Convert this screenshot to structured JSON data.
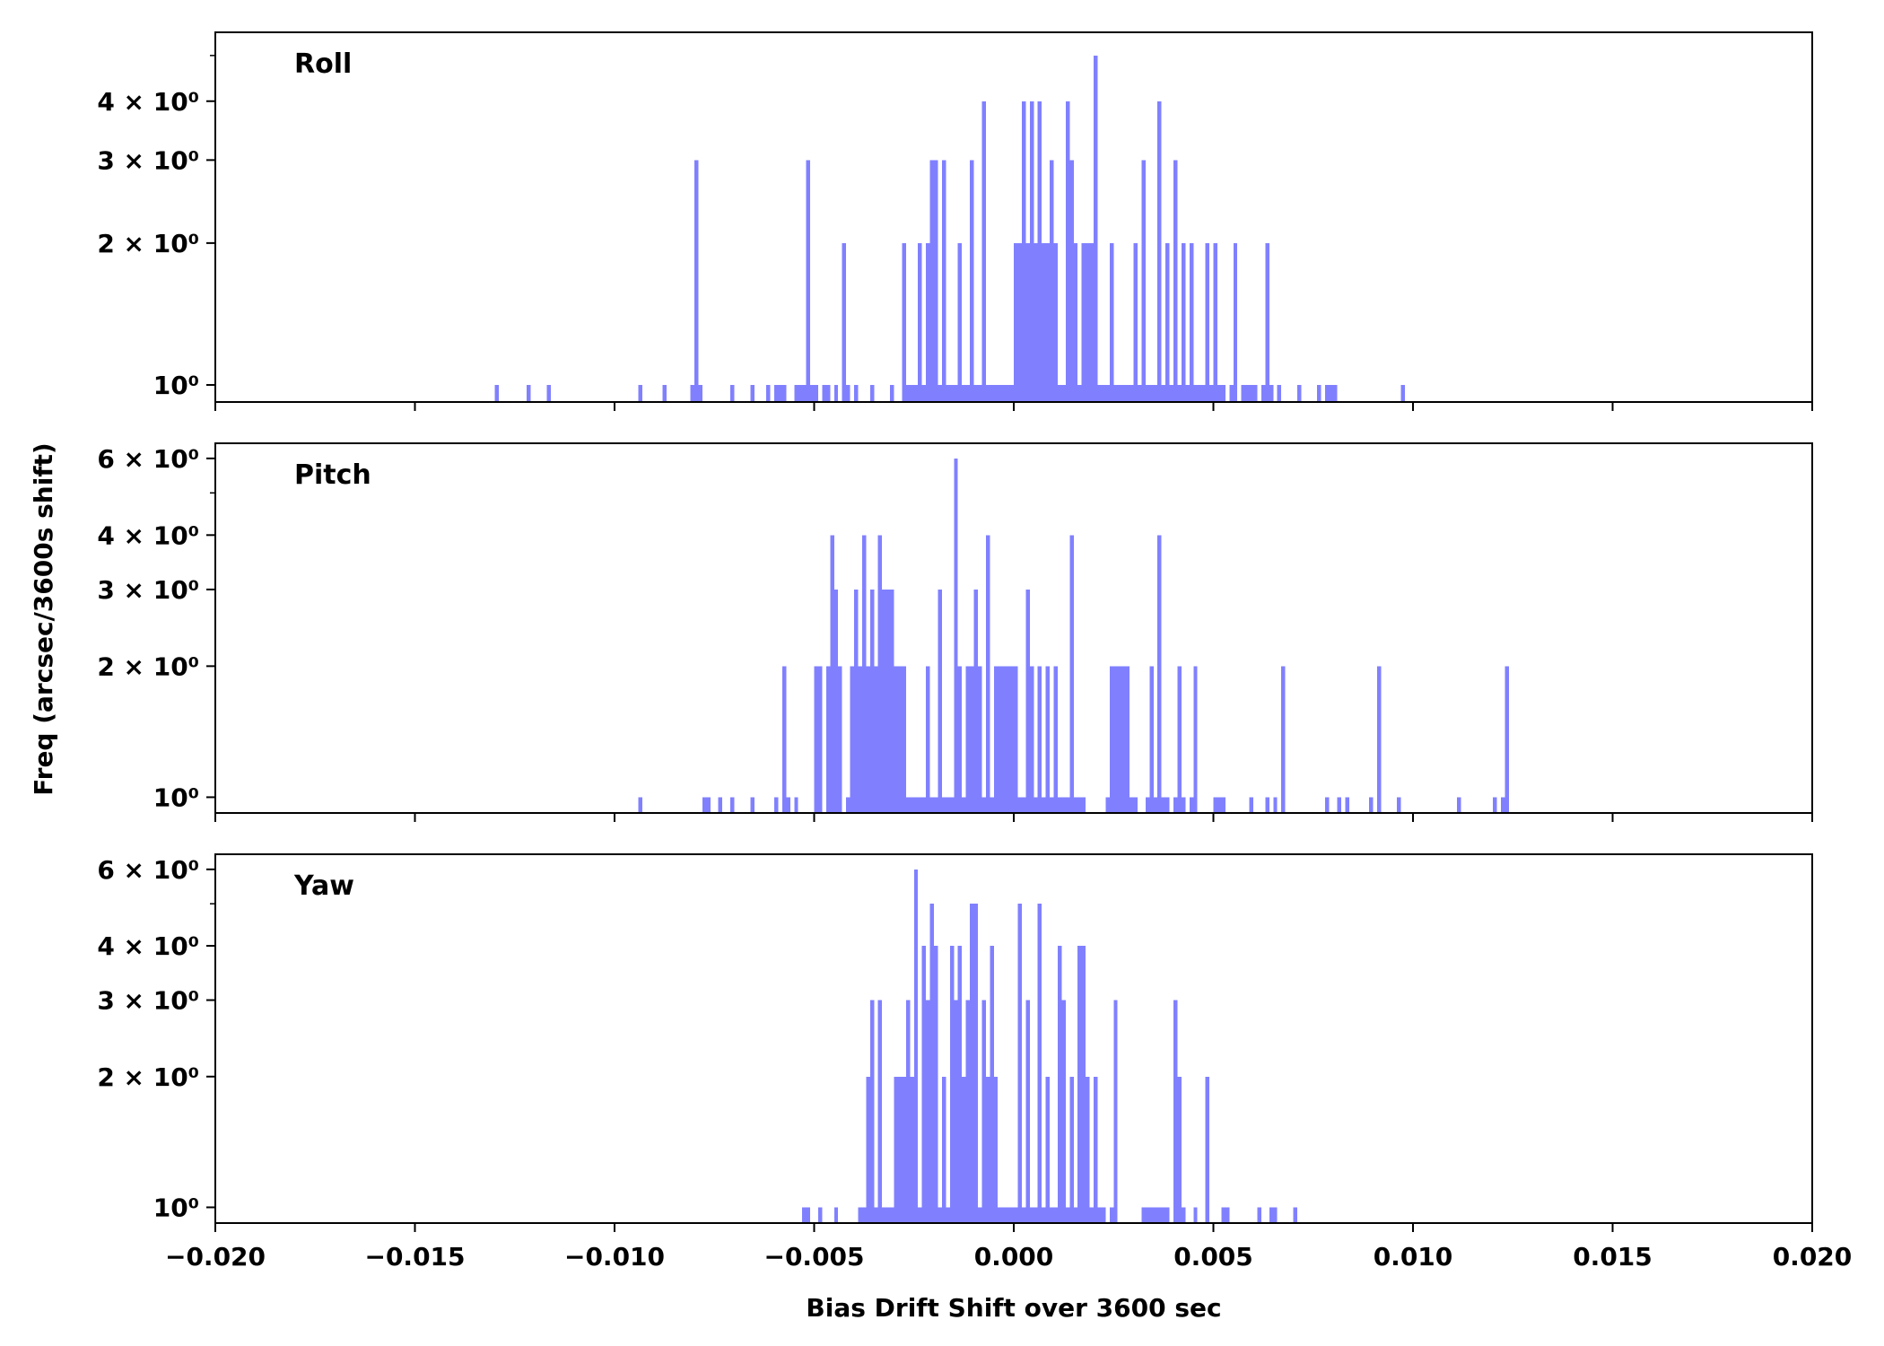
{
  "figure": {
    "ylabel": "Freq (arcsec/3600s shift)",
    "xlabel": "Bias Drift Shift over 3600 sec"
  },
  "chart_data": [
    {
      "type": "bar",
      "title": "Roll",
      "xlabel": "",
      "ylabel": "",
      "xlim": [
        -0.02,
        0.02
      ],
      "ylim": [
        0.92,
        5.6
      ],
      "yscale": "log",
      "xticks": [
        "−0.020",
        "−0.015",
        "−0.010",
        "−0.005",
        "0.000",
        "0.005",
        "0.010",
        "0.015",
        "0.020"
      ],
      "yticks": [
        {
          "value": 1,
          "label": "10⁰"
        },
        {
          "value": 2,
          "label": "2 × 10⁰"
        },
        {
          "value": 3,
          "label": "3 × 10⁰"
        },
        {
          "value": 4,
          "label": "4 × 10⁰"
        }
      ],
      "color": "#8080ff",
      "bin_width": 0.0001,
      "bins": [
        [
          -0.013,
          1
        ],
        [
          -0.0122,
          1
        ],
        [
          -0.0117,
          1
        ],
        [
          -0.0094,
          1
        ],
        [
          -0.0088,
          1
        ],
        [
          -0.0081,
          1
        ],
        [
          -0.008,
          3
        ],
        [
          -0.0079,
          1
        ],
        [
          -0.0071,
          1
        ],
        [
          -0.0066,
          1
        ],
        [
          -0.0062,
          1
        ],
        [
          -0.006,
          1
        ],
        [
          -0.0059,
          1
        ],
        [
          -0.0058,
          1
        ],
        [
          -0.0055,
          1
        ],
        [
          -0.0054,
          1
        ],
        [
          -0.0053,
          1
        ],
        [
          -0.0052,
          3
        ],
        [
          -0.0051,
          1
        ],
        [
          -0.005,
          1
        ],
        [
          -0.0048,
          1
        ],
        [
          -0.0047,
          1
        ],
        [
          -0.0045,
          1
        ],
        [
          -0.0043,
          2
        ],
        [
          -0.0042,
          1
        ],
        [
          -0.004,
          1
        ],
        [
          -0.0036,
          1
        ],
        [
          -0.0031,
          1
        ],
        [
          -0.0028,
          2
        ],
        [
          -0.0027,
          1
        ],
        [
          -0.0026,
          1
        ],
        [
          -0.0025,
          1
        ],
        [
          -0.0024,
          2
        ],
        [
          -0.0023,
          1
        ],
        [
          -0.0022,
          2
        ],
        [
          -0.0021,
          3
        ],
        [
          -0.002,
          3
        ],
        [
          -0.0019,
          1
        ],
        [
          -0.0018,
          3
        ],
        [
          -0.0017,
          1
        ],
        [
          -0.0016,
          1
        ],
        [
          -0.0015,
          1
        ],
        [
          -0.0014,
          2
        ],
        [
          -0.0013,
          1
        ],
        [
          -0.0012,
          1
        ],
        [
          -0.0011,
          3
        ],
        [
          -0.001,
          1
        ],
        [
          -0.0009,
          1
        ],
        [
          -0.0008,
          4
        ],
        [
          -0.0007,
          1
        ],
        [
          -0.0006,
          1
        ],
        [
          -0.0005,
          1
        ],
        [
          -0.0004,
          1
        ],
        [
          -0.0003,
          1
        ],
        [
          -0.0002,
          1
        ],
        [
          -0.0001,
          1
        ],
        [
          0.0,
          2
        ],
        [
          0.0001,
          2
        ],
        [
          0.0002,
          4
        ],
        [
          0.0003,
          2
        ],
        [
          0.0004,
          4
        ],
        [
          0.0005,
          2
        ],
        [
          0.0006,
          4
        ],
        [
          0.0007,
          2
        ],
        [
          0.0008,
          2
        ],
        [
          0.0009,
          3
        ],
        [
          0.001,
          2
        ],
        [
          0.0011,
          1
        ],
        [
          0.0012,
          1
        ],
        [
          0.0013,
          4
        ],
        [
          0.0014,
          3
        ],
        [
          0.0015,
          2
        ],
        [
          0.0016,
          1
        ],
        [
          0.0017,
          2
        ],
        [
          0.0018,
          2
        ],
        [
          0.0019,
          2
        ],
        [
          0.002,
          5
        ],
        [
          0.0021,
          1
        ],
        [
          0.0022,
          1
        ],
        [
          0.0023,
          1
        ],
        [
          0.0024,
          2
        ],
        [
          0.0025,
          1
        ],
        [
          0.0026,
          1
        ],
        [
          0.0027,
          1
        ],
        [
          0.0028,
          1
        ],
        [
          0.0029,
          1
        ],
        [
          0.003,
          2
        ],
        [
          0.0031,
          1
        ],
        [
          0.0032,
          3
        ],
        [
          0.0033,
          1
        ],
        [
          0.0034,
          1
        ],
        [
          0.0035,
          1
        ],
        [
          0.0036,
          4
        ],
        [
          0.0037,
          1
        ],
        [
          0.0038,
          2
        ],
        [
          0.0039,
          1
        ],
        [
          0.004,
          3
        ],
        [
          0.0041,
          1
        ],
        [
          0.0042,
          2
        ],
        [
          0.0043,
          1
        ],
        [
          0.0044,
          2
        ],
        [
          0.0045,
          1
        ],
        [
          0.0046,
          1
        ],
        [
          0.0047,
          1
        ],
        [
          0.0048,
          2
        ],
        [
          0.0049,
          1
        ],
        [
          0.005,
          2
        ],
        [
          0.0051,
          1
        ],
        [
          0.0052,
          1
        ],
        [
          0.0054,
          1
        ],
        [
          0.0055,
          2
        ],
        [
          0.0057,
          1
        ],
        [
          0.0058,
          1
        ],
        [
          0.0059,
          1
        ],
        [
          0.006,
          1
        ],
        [
          0.0062,
          1
        ],
        [
          0.0063,
          2
        ],
        [
          0.0064,
          1
        ],
        [
          0.0066,
          1
        ],
        [
          0.0071,
          1
        ],
        [
          0.0076,
          1
        ],
        [
          0.0078,
          1
        ],
        [
          0.0079,
          1
        ],
        [
          0.008,
          1
        ],
        [
          0.0097,
          1
        ]
      ]
    },
    {
      "type": "bar",
      "title": "Pitch",
      "xlabel": "",
      "ylabel": "",
      "xlim": [
        -0.02,
        0.02
      ],
      "ylim": [
        0.92,
        6.5
      ],
      "yscale": "log",
      "xticks": [
        "−0.020",
        "−0.015",
        "−0.010",
        "−0.005",
        "0.000",
        "0.005",
        "0.010",
        "0.015",
        "0.020"
      ],
      "yticks": [
        {
          "value": 1,
          "label": "10⁰"
        },
        {
          "value": 2,
          "label": "2 × 10⁰"
        },
        {
          "value": 3,
          "label": "3 × 10⁰"
        },
        {
          "value": 4,
          "label": "4 × 10⁰"
        },
        {
          "value": 6,
          "label": "6 × 10⁰"
        }
      ],
      "color": "#8080ff",
      "bin_width": 0.0001,
      "bins": [
        [
          -0.0094,
          1
        ],
        [
          -0.0078,
          1
        ],
        [
          -0.0077,
          1
        ],
        [
          -0.0074,
          1
        ],
        [
          -0.0071,
          1
        ],
        [
          -0.0066,
          1
        ],
        [
          -0.006,
          1
        ],
        [
          -0.0058,
          2
        ],
        [
          -0.0057,
          1
        ],
        [
          -0.0055,
          1
        ],
        [
          -0.005,
          2
        ],
        [
          -0.0049,
          2
        ],
        [
          -0.0047,
          2
        ],
        [
          -0.0046,
          4
        ],
        [
          -0.0045,
          3
        ],
        [
          -0.0044,
          2
        ],
        [
          -0.0042,
          1
        ],
        [
          -0.0041,
          2
        ],
        [
          -0.004,
          3
        ],
        [
          -0.0039,
          2
        ],
        [
          -0.0038,
          4
        ],
        [
          -0.0037,
          2
        ],
        [
          -0.0036,
          3
        ],
        [
          -0.0035,
          2
        ],
        [
          -0.0034,
          4
        ],
        [
          -0.0033,
          3
        ],
        [
          -0.0032,
          3
        ],
        [
          -0.0031,
          3
        ],
        [
          -0.003,
          2
        ],
        [
          -0.0029,
          2
        ],
        [
          -0.0028,
          2
        ],
        [
          -0.0027,
          1
        ],
        [
          -0.0026,
          1
        ],
        [
          -0.0025,
          1
        ],
        [
          -0.0024,
          1
        ],
        [
          -0.0023,
          1
        ],
        [
          -0.0022,
          2
        ],
        [
          -0.0021,
          1
        ],
        [
          -0.002,
          1
        ],
        [
          -0.0019,
          3
        ],
        [
          -0.0018,
          1
        ],
        [
          -0.0017,
          1
        ],
        [
          -0.0016,
          1
        ],
        [
          -0.0015,
          6
        ],
        [
          -0.0014,
          2
        ],
        [
          -0.0013,
          1
        ],
        [
          -0.0012,
          2
        ],
        [
          -0.0011,
          2
        ],
        [
          -0.001,
          3
        ],
        [
          -0.0009,
          2
        ],
        [
          -0.0008,
          1
        ],
        [
          -0.0007,
          4
        ],
        [
          -0.0006,
          1
        ],
        [
          -0.0005,
          2
        ],
        [
          -0.0004,
          2
        ],
        [
          -0.0003,
          2
        ],
        [
          -0.0002,
          2
        ],
        [
          -0.0001,
          2
        ],
        [
          0.0,
          2
        ],
        [
          0.0001,
          1
        ],
        [
          0.0002,
          1
        ],
        [
          0.0003,
          3
        ],
        [
          0.0004,
          2
        ],
        [
          0.0005,
          1
        ],
        [
          0.0006,
          2
        ],
        [
          0.0007,
          1
        ],
        [
          0.0008,
          2
        ],
        [
          0.0009,
          1
        ],
        [
          0.001,
          2
        ],
        [
          0.0011,
          1
        ],
        [
          0.0012,
          1
        ],
        [
          0.0013,
          1
        ],
        [
          0.0014,
          4
        ],
        [
          0.0015,
          1
        ],
        [
          0.0016,
          1
        ],
        [
          0.0017,
          1
        ],
        [
          0.0023,
          1
        ],
        [
          0.0024,
          2
        ],
        [
          0.0025,
          2
        ],
        [
          0.0026,
          2
        ],
        [
          0.0027,
          2
        ],
        [
          0.0028,
          2
        ],
        [
          0.0029,
          1
        ],
        [
          0.003,
          1
        ],
        [
          0.0033,
          1
        ],
        [
          0.0034,
          2
        ],
        [
          0.0035,
          1
        ],
        [
          0.0036,
          4
        ],
        [
          0.0037,
          1
        ],
        [
          0.0038,
          1
        ],
        [
          0.004,
          1
        ],
        [
          0.0041,
          2
        ],
        [
          0.0042,
          1
        ],
        [
          0.0044,
          1
        ],
        [
          0.0045,
          2
        ],
        [
          0.005,
          1
        ],
        [
          0.0051,
          1
        ],
        [
          0.0052,
          1
        ],
        [
          0.0059,
          1
        ],
        [
          0.0063,
          1
        ],
        [
          0.0065,
          1
        ],
        [
          0.0067,
          2
        ],
        [
          0.0078,
          1
        ],
        [
          0.0081,
          1
        ],
        [
          0.0083,
          1
        ],
        [
          0.0089,
          1
        ],
        [
          0.0091,
          2
        ],
        [
          0.0096,
          1
        ],
        [
          0.0111,
          1
        ],
        [
          0.012,
          1
        ],
        [
          0.0122,
          1
        ],
        [
          0.0123,
          2
        ]
      ]
    },
    {
      "type": "bar",
      "title": "Yaw",
      "xlabel": "Bias Drift Shift over 3600 sec",
      "ylabel": "",
      "xlim": [
        -0.02,
        0.02
      ],
      "ylim": [
        0.92,
        6.5
      ],
      "yscale": "log",
      "xticks": [
        "−0.020",
        "−0.015",
        "−0.010",
        "−0.005",
        "0.000",
        "0.005",
        "0.010",
        "0.015",
        "0.020"
      ],
      "yticks": [
        {
          "value": 1,
          "label": "10⁰"
        },
        {
          "value": 2,
          "label": "2 × 10⁰"
        },
        {
          "value": 3,
          "label": "3 × 10⁰"
        },
        {
          "value": 4,
          "label": "4 × 10⁰"
        },
        {
          "value": 6,
          "label": "6 × 10⁰"
        }
      ],
      "color": "#8080ff",
      "bin_width": 0.0001,
      "bins": [
        [
          -0.0053,
          1
        ],
        [
          -0.0052,
          1
        ],
        [
          -0.0049,
          1
        ],
        [
          -0.0045,
          1
        ],
        [
          -0.0039,
          1
        ],
        [
          -0.0038,
          1
        ],
        [
          -0.0037,
          2
        ],
        [
          -0.0036,
          3
        ],
        [
          -0.0035,
          1
        ],
        [
          -0.0034,
          3
        ],
        [
          -0.0033,
          1
        ],
        [
          -0.0032,
          1
        ],
        [
          -0.0031,
          1
        ],
        [
          -0.003,
          2
        ],
        [
          -0.0029,
          2
        ],
        [
          -0.0028,
          2
        ],
        [
          -0.0027,
          3
        ],
        [
          -0.0026,
          2
        ],
        [
          -0.0025,
          6
        ],
        [
          -0.0024,
          1
        ],
        [
          -0.0023,
          4
        ],
        [
          -0.0022,
          3
        ],
        [
          -0.0021,
          5
        ],
        [
          -0.002,
          4
        ],
        [
          -0.0019,
          1
        ],
        [
          -0.0018,
          2
        ],
        [
          -0.0017,
          1
        ],
        [
          -0.0016,
          4
        ],
        [
          -0.0015,
          3
        ],
        [
          -0.0014,
          4
        ],
        [
          -0.0013,
          2
        ],
        [
          -0.0012,
          3
        ],
        [
          -0.0011,
          5
        ],
        [
          -0.001,
          5
        ],
        [
          -0.0009,
          1
        ],
        [
          -0.0008,
          3
        ],
        [
          -0.0007,
          2
        ],
        [
          -0.0006,
          4
        ],
        [
          -0.0005,
          2
        ],
        [
          -0.0004,
          1
        ],
        [
          -0.0003,
          1
        ],
        [
          -0.0002,
          1
        ],
        [
          -0.0001,
          1
        ],
        [
          0.0,
          1
        ],
        [
          0.0001,
          5
        ],
        [
          0.0002,
          1
        ],
        [
          0.0003,
          3
        ],
        [
          0.0004,
          1
        ],
        [
          0.0005,
          1
        ],
        [
          0.0006,
          5
        ],
        [
          0.0007,
          1
        ],
        [
          0.0008,
          2
        ],
        [
          0.0009,
          1
        ],
        [
          0.001,
          1
        ],
        [
          0.0011,
          4
        ],
        [
          0.0012,
          3
        ],
        [
          0.0013,
          1
        ],
        [
          0.0014,
          2
        ],
        [
          0.0015,
          1
        ],
        [
          0.0016,
          4
        ],
        [
          0.0017,
          4
        ],
        [
          0.0018,
          2
        ],
        [
          0.0019,
          1
        ],
        [
          0.002,
          2
        ],
        [
          0.0021,
          1
        ],
        [
          0.0022,
          1
        ],
        [
          0.0024,
          1
        ],
        [
          0.0025,
          3
        ],
        [
          0.0032,
          1
        ],
        [
          0.0033,
          1
        ],
        [
          0.0034,
          1
        ],
        [
          0.0035,
          1
        ],
        [
          0.0036,
          1
        ],
        [
          0.0037,
          1
        ],
        [
          0.0038,
          1
        ],
        [
          0.004,
          3
        ],
        [
          0.0041,
          2
        ],
        [
          0.0042,
          1
        ],
        [
          0.0045,
          1
        ],
        [
          0.0048,
          2
        ],
        [
          0.0052,
          1
        ],
        [
          0.0053,
          1
        ],
        [
          0.0061,
          1
        ],
        [
          0.0064,
          1
        ],
        [
          0.0065,
          1
        ],
        [
          0.007,
          1
        ]
      ]
    }
  ]
}
